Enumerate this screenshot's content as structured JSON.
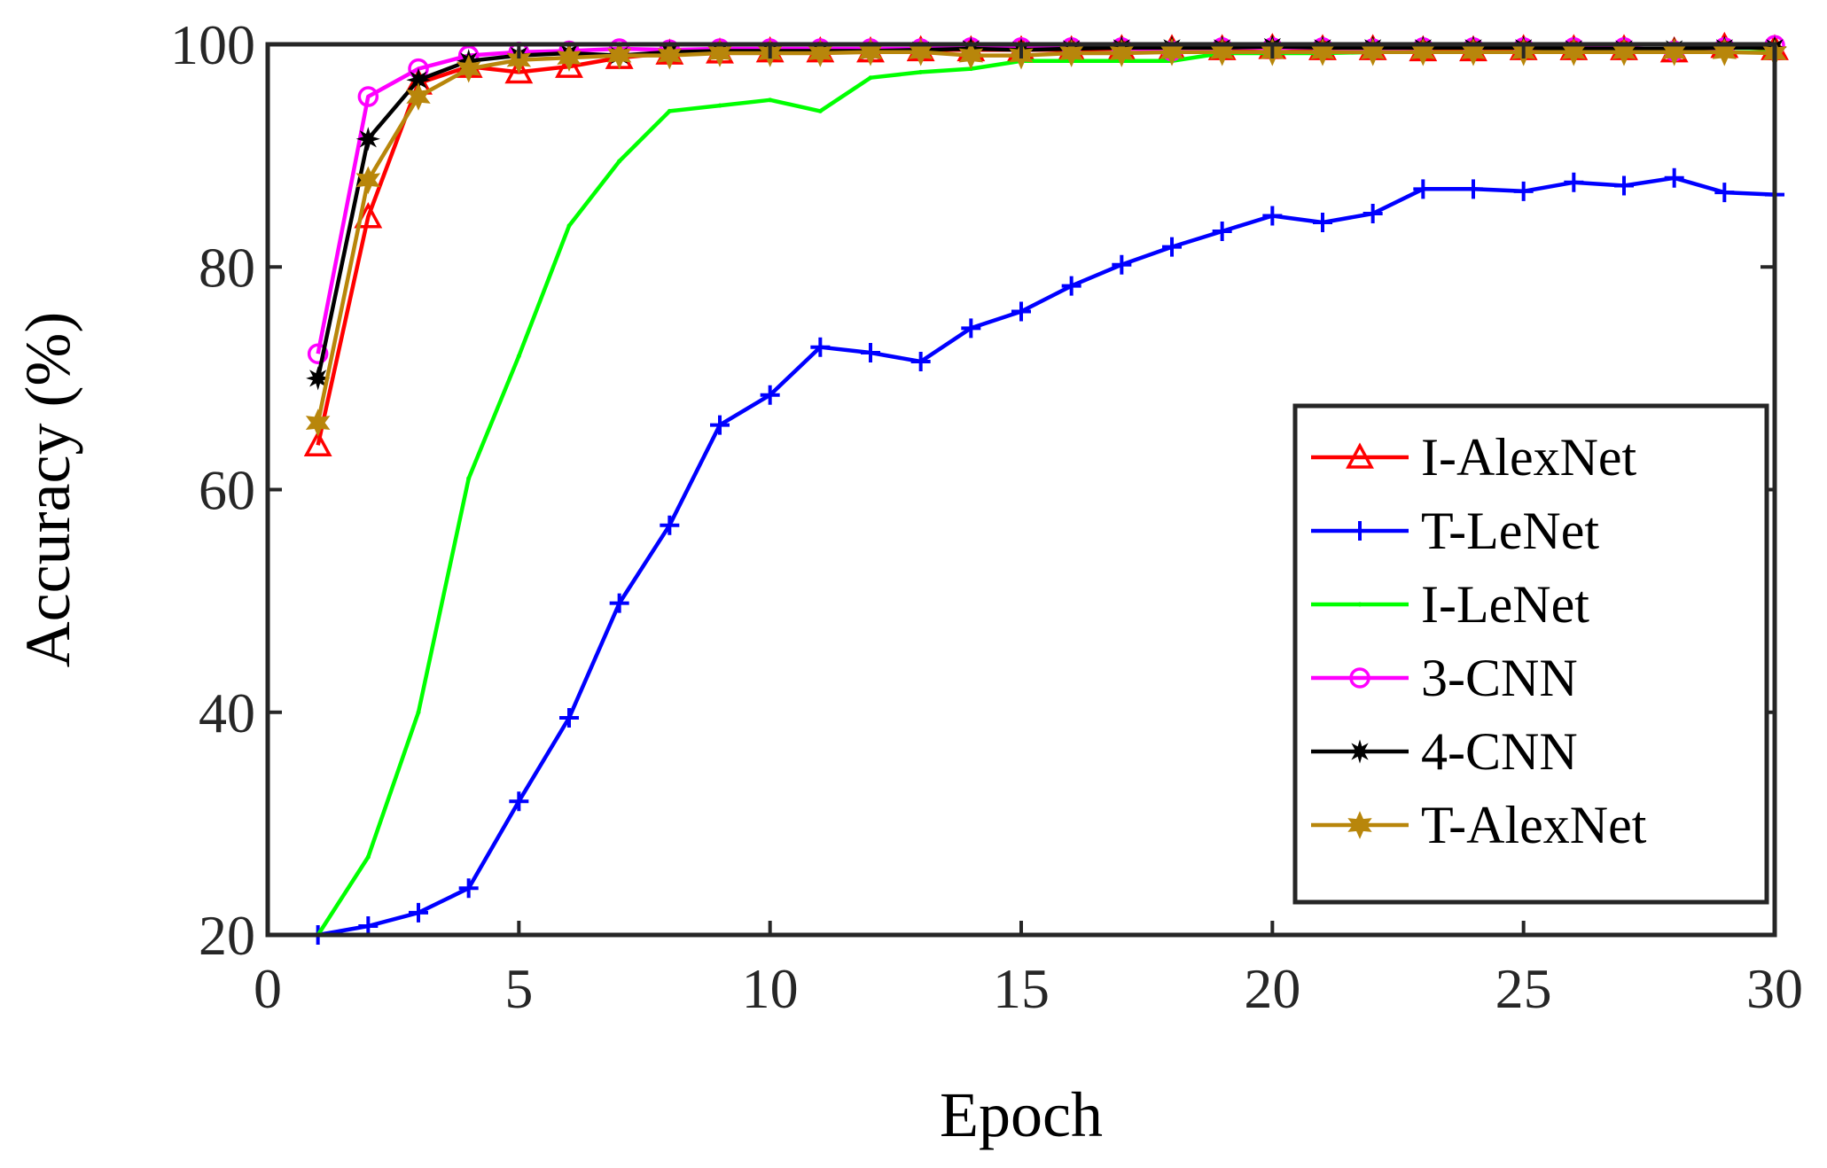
{
  "chart_data": {
    "type": "line",
    "title": "",
    "xlabel": "Epoch",
    "ylabel": "Accuracy (%)",
    "xlim": [
      0,
      30
    ],
    "ylim": [
      20,
      100
    ],
    "xticks": [
      "0",
      "5",
      "10",
      "15",
      "20",
      "25",
      "30"
    ],
    "yticks": [
      "20",
      "40",
      "60",
      "80",
      "100"
    ],
    "legend_position": "bottom-right",
    "grid": false,
    "x": [
      1,
      2,
      3,
      4,
      5,
      6,
      7,
      8,
      9,
      10,
      11,
      12,
      13,
      14,
      15,
      16,
      17,
      18,
      19,
      20,
      21,
      22,
      23,
      24,
      25,
      26,
      27,
      28,
      29,
      30
    ],
    "series": [
      {
        "name": "I-AlexNet",
        "color": "#ff0000",
        "marker": "triangle",
        "values": [
          64,
          84.5,
          96.5,
          98,
          97.5,
          98,
          98.8,
          99.2,
          99.3,
          99.4,
          99.4,
          99.4,
          99.5,
          99.5,
          99.5,
          99.5,
          99.6,
          99.6,
          99.6,
          99.7,
          99.6,
          99.6,
          99.5,
          99.5,
          99.6,
          99.6,
          99.6,
          99.4,
          99.8,
          99.6
        ]
      },
      {
        "name": "T-LeNet",
        "color": "#0000ff",
        "marker": "plus",
        "values": [
          20,
          20.8,
          22,
          24.2,
          32,
          39.5,
          49.8,
          56.8,
          65.8,
          68.5,
          72.8,
          72.3,
          71.5,
          74.5,
          76,
          78.3,
          80.2,
          81.8,
          83.2,
          84.6,
          84,
          84.8,
          87,
          87,
          86.8,
          87.6,
          87.3,
          88,
          86.7,
          86.5
        ]
      },
      {
        "name": "I-LeNet",
        "color": "#00ff00",
        "marker": "point",
        "values": [
          20,
          27,
          40,
          61,
          72,
          83.7,
          89.5,
          94,
          94.5,
          95,
          94,
          97,
          97.5,
          97.8,
          98.5,
          98.5,
          98.5,
          98.5,
          99.2,
          99.2,
          99.2,
          99.3,
          99.3,
          99.3,
          99.3,
          99.3,
          99.3,
          99.3,
          99.3,
          99.3
        ]
      },
      {
        "name": "3-CNN",
        "color": "#ff00ff",
        "marker": "circle",
        "values": [
          72.2,
          95.3,
          97.8,
          99,
          99.3,
          99.4,
          99.6,
          99.5,
          99.6,
          99.6,
          99.6,
          99.6,
          99.6,
          99.7,
          99.7,
          99.7,
          99.7,
          99.4,
          99.7,
          99.7,
          99.7,
          99.6,
          99.7,
          99.7,
          99.7,
          99.7,
          99.7,
          99.4,
          99.7,
          99.9
        ]
      },
      {
        "name": "4-CNN",
        "color": "#000000",
        "marker": "asterisk",
        "values": [
          70,
          91.5,
          96.8,
          98.5,
          99,
          99.2,
          99,
          99.3,
          99.4,
          99.4,
          99.4,
          99.4,
          99.5,
          99.6,
          99.5,
          99.6,
          99.7,
          99.7,
          99.7,
          99.8,
          99.7,
          99.7,
          99.7,
          99.7,
          99.7,
          99.6,
          99.6,
          99.6,
          99.7,
          99.7
        ]
      },
      {
        "name": "T-AlexNet",
        "color": "#b8860b",
        "marker": "hexagram",
        "values": [
          66,
          87.8,
          95.3,
          97.8,
          98.6,
          98.8,
          99,
          99,
          99.2,
          99.2,
          99.2,
          99.3,
          99.3,
          99,
          99,
          99.2,
          99.2,
          99.3,
          99.3,
          99.3,
          99.3,
          99.3,
          99.3,
          99.3,
          99.3,
          99.3,
          99.3,
          99.3,
          99.3,
          99.2
        ]
      }
    ]
  }
}
